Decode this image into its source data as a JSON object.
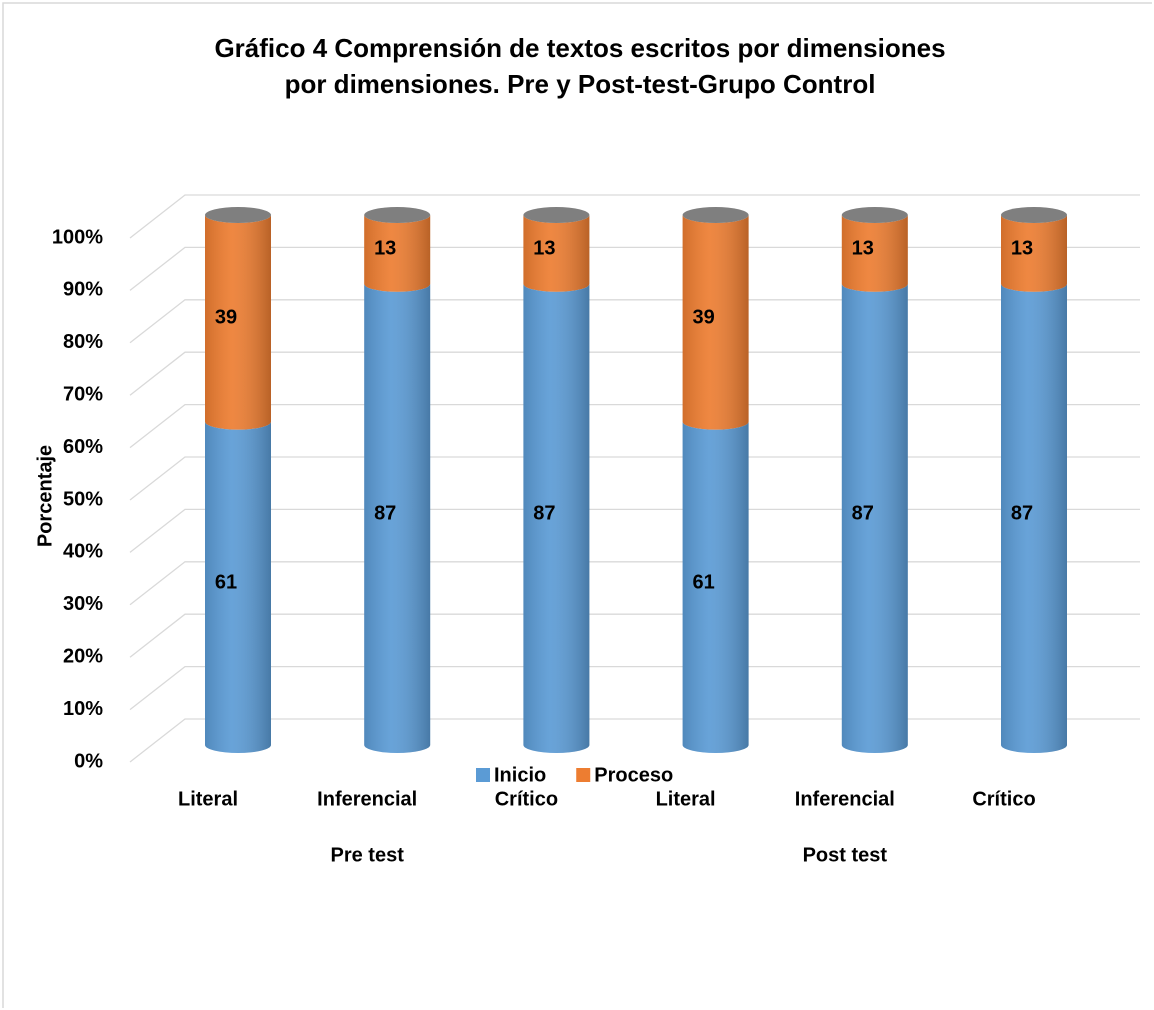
{
  "chart_data": {
    "type": "bar3d_stacked",
    "title": [
      "Gráfico 4 Comprensión de textos escritos por dimensiones",
      "por dimensiones. Pre y Post-test-Grupo Control"
    ],
    "y_label": "Porcentaje",
    "categories": [
      "Literal",
      "Inferencial",
      "Crítico",
      "Literal",
      "Inferencial",
      "Crítico"
    ],
    "groups": [
      "Pre test",
      "Post test"
    ],
    "series": [
      {
        "name": "Inicio",
        "color": "#5b9bd5",
        "values": [
          61,
          87,
          87,
          61,
          87,
          87
        ]
      },
      {
        "name": "Proceso",
        "color": "#ed7d31",
        "values": [
          39,
          13,
          13,
          39,
          13,
          13
        ]
      }
    ],
    "ylim": [
      0,
      100
    ],
    "yticks": [
      {
        "value": 0,
        "label": "0%"
      },
      {
        "value": 10,
        "label": "10%"
      },
      {
        "value": 20,
        "label": "20%"
      },
      {
        "value": 30,
        "label": "30%"
      },
      {
        "value": 40,
        "label": "40%"
      },
      {
        "value": 50,
        "label": "50%"
      },
      {
        "value": 60,
        "label": "60%"
      },
      {
        "value": 70,
        "label": "70%"
      },
      {
        "value": 80,
        "label": "80%"
      },
      {
        "value": 90,
        "label": "90%"
      },
      {
        "value": 100,
        "label": "100%"
      }
    ],
    "grid": true,
    "legend": "bottom"
  }
}
